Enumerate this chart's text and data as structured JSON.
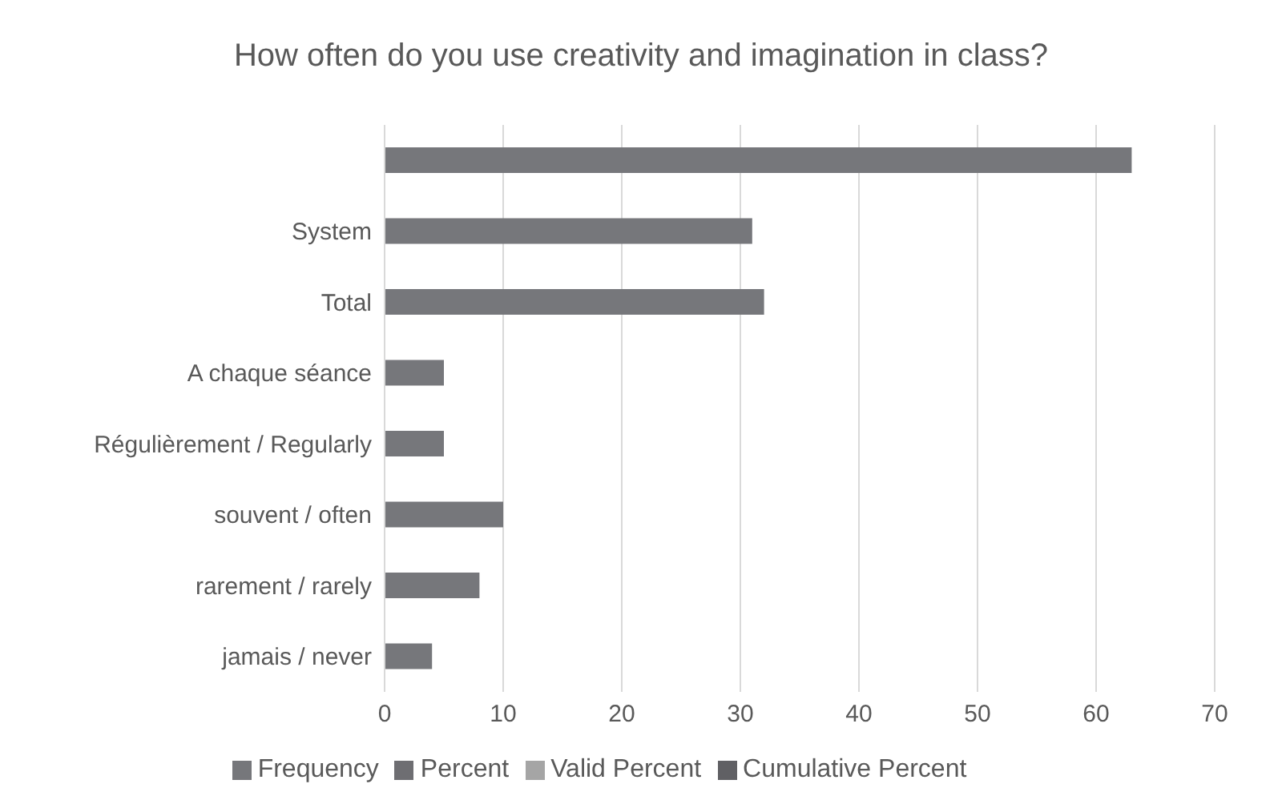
{
  "chart_data": {
    "type": "bar",
    "orientation": "horizontal",
    "title": "How often do you use creativity and imagination in class?",
    "categories": [
      null,
      "System",
      "Total",
      "A chaque séance",
      "Régulièrement / Regularly",
      "souvent / often",
      "rarement / rarely",
      "jamais / never"
    ],
    "series": [
      {
        "name": "Frequency",
        "color": "#76777b",
        "values": [
          63,
          31,
          32,
          5,
          5,
          10,
          8,
          4
        ]
      },
      {
        "name": "Percent",
        "color": "#6e6e72",
        "values": [
          null,
          null,
          null,
          null,
          null,
          null,
          null,
          null
        ]
      },
      {
        "name": "Valid Percent",
        "color": "#a5a5a5",
        "values": [
          null,
          null,
          null,
          null,
          null,
          null,
          null,
          null
        ]
      },
      {
        "name": "Cumulative Percent",
        "color": "#606064",
        "values": [
          null,
          null,
          null,
          null,
          null,
          null,
          null,
          null
        ]
      }
    ],
    "xlim": [
      0,
      70
    ],
    "xticks": [
      0,
      10,
      20,
      30,
      40,
      50,
      60,
      70
    ],
    "grid": "x",
    "legend": "bottom"
  }
}
